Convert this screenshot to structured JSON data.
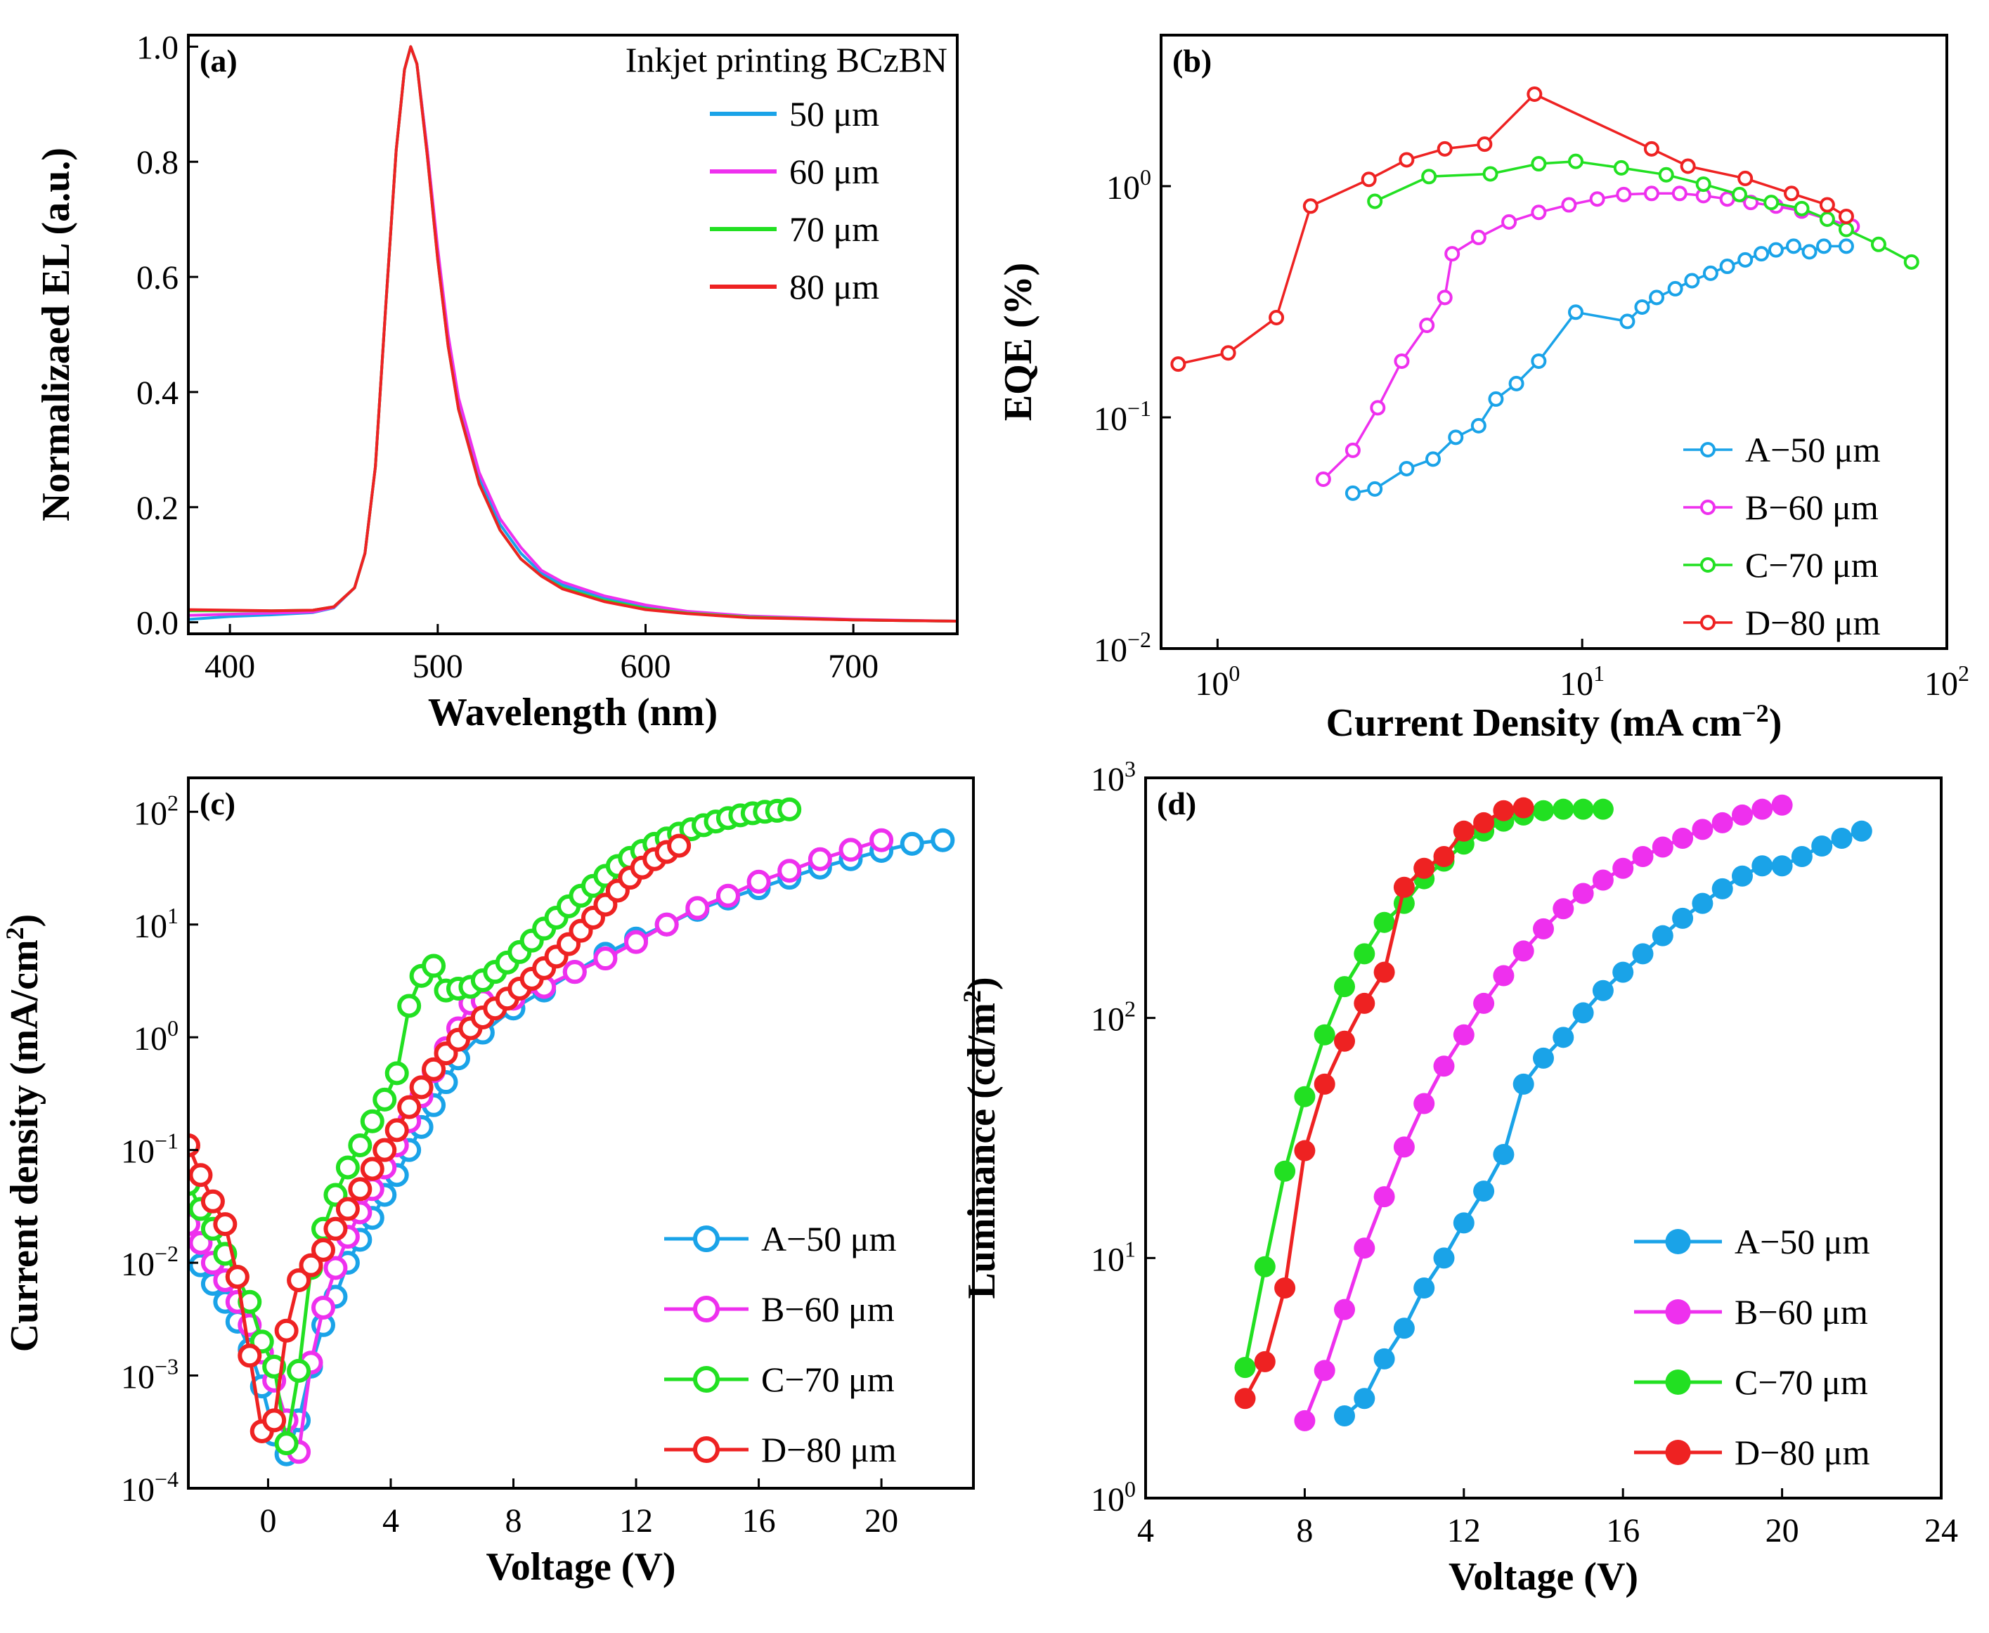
{
  "colors": {
    "A": "#1aa3e8",
    "B": "#ee30ee",
    "C": "#22e022",
    "D": "#ee2222"
  },
  "chart_data": [
    {
      "panel": "(a)",
      "type": "line",
      "xlabel": "Wavelength (nm)",
      "ylabel": "Normalizaed EL (a.u.)",
      "xlim": [
        380,
        750
      ],
      "ylim": [
        -0.02,
        1.02
      ],
      "xticks": [
        400,
        500,
        600,
        700
      ],
      "yticks": [
        0.0,
        0.2,
        0.4,
        0.6,
        0.8,
        1.0
      ],
      "legend_title": "Inkjet printing BCzBN",
      "legend_position": "top-right",
      "x": [
        380,
        400,
        420,
        440,
        450,
        460,
        465,
        470,
        475,
        480,
        484,
        487,
        490,
        495,
        500,
        505,
        510,
        520,
        530,
        540,
        550,
        560,
        580,
        600,
        620,
        650,
        700,
        750
      ],
      "series": [
        {
          "name": "50 μm",
          "color": "A",
          "values": [
            0.005,
            0.01,
            0.013,
            0.017,
            0.025,
            0.06,
            0.12,
            0.27,
            0.55,
            0.82,
            0.96,
            1.0,
            0.97,
            0.82,
            0.64,
            0.49,
            0.38,
            0.25,
            0.17,
            0.12,
            0.085,
            0.065,
            0.043,
            0.028,
            0.018,
            0.01,
            0.004,
            0.002
          ]
        },
        {
          "name": "60 μm",
          "color": "B",
          "values": [
            0.012,
            0.014,
            0.016,
            0.018,
            0.026,
            0.06,
            0.12,
            0.27,
            0.55,
            0.82,
            0.96,
            1.0,
            0.97,
            0.82,
            0.65,
            0.5,
            0.39,
            0.26,
            0.18,
            0.13,
            0.09,
            0.07,
            0.046,
            0.03,
            0.019,
            0.011,
            0.005,
            0.002
          ]
        },
        {
          "name": "70 μm",
          "color": "C",
          "values": [
            0.02,
            0.02,
            0.02,
            0.021,
            0.027,
            0.06,
            0.12,
            0.27,
            0.55,
            0.82,
            0.96,
            1.0,
            0.97,
            0.81,
            0.63,
            0.48,
            0.37,
            0.24,
            0.16,
            0.11,
            0.08,
            0.06,
            0.038,
            0.024,
            0.016,
            0.009,
            0.004,
            0.002
          ]
        },
        {
          "name": "80 μm",
          "color": "D",
          "values": [
            0.022,
            0.021,
            0.02,
            0.021,
            0.027,
            0.06,
            0.12,
            0.27,
            0.55,
            0.82,
            0.96,
            1.0,
            0.97,
            0.81,
            0.63,
            0.48,
            0.37,
            0.24,
            0.16,
            0.11,
            0.08,
            0.058,
            0.036,
            0.022,
            0.015,
            0.008,
            0.004,
            0.002
          ]
        }
      ]
    },
    {
      "panel": "(b)",
      "type": "line",
      "xscale": "log",
      "yscale": "log",
      "xlabel": "Current Density (mA cm",
      "xlabel_sup": "−2",
      "xlabel_close": ")",
      "ylabel": "EQE (%)",
      "xlim": [
        0.7,
        100
      ],
      "ylim": [
        0.01,
        4.5
      ],
      "xticks": [
        {
          "base": "10",
          "exp": "0",
          "v": 1
        },
        {
          "base": "10",
          "exp": "1",
          "v": 10
        },
        {
          "base": "10",
          "exp": "2",
          "v": 100
        }
      ],
      "yticks": [
        {
          "base": "10",
          "exp": "−2",
          "v": 0.01
        },
        {
          "base": "10",
          "exp": "−1",
          "v": 0.1
        },
        {
          "base": "10",
          "exp": "0",
          "v": 1
        }
      ],
      "legend_position": "bottom-right",
      "series": [
        {
          "name": "A−50 μm",
          "color": "A",
          "x": [
            2.35,
            2.7,
            3.3,
            3.9,
            4.5,
            5.2,
            5.8,
            6.6,
            7.6,
            9.6,
            13.3,
            14.6,
            16,
            18,
            20,
            22.5,
            25,
            28,
            31,
            34,
            38,
            42,
            46,
            53
          ],
          "y": [
            0.047,
            0.049,
            0.06,
            0.066,
            0.082,
            0.092,
            0.12,
            0.14,
            0.175,
            0.285,
            0.26,
            0.3,
            0.33,
            0.36,
            0.39,
            0.42,
            0.45,
            0.48,
            0.51,
            0.53,
            0.55,
            0.52,
            0.55,
            0.55
          ]
        },
        {
          "name": "B−60 μm",
          "color": "B",
          "x": [
            1.95,
            2.35,
            2.75,
            3.2,
            3.75,
            4.2,
            4.4,
            5.2,
            6.3,
            7.6,
            9.2,
            11,
            13,
            15.5,
            18.5,
            21.5,
            25,
            29,
            34,
            40,
            47,
            55
          ],
          "y": [
            0.054,
            0.072,
            0.11,
            0.175,
            0.25,
            0.33,
            0.51,
            0.6,
            0.7,
            0.77,
            0.83,
            0.88,
            0.92,
            0.93,
            0.93,
            0.91,
            0.88,
            0.85,
            0.82,
            0.78,
            0.72,
            0.67
          ]
        },
        {
          "name": "C−70 μm",
          "color": "C",
          "x": [
            2.7,
            3.8,
            5.6,
            7.6,
            9.6,
            12.8,
            17,
            21.5,
            27,
            33,
            40,
            47,
            53,
            65,
            80
          ],
          "y": [
            0.86,
            1.1,
            1.13,
            1.25,
            1.28,
            1.2,
            1.12,
            1.02,
            0.92,
            0.85,
            0.8,
            0.72,
            0.65,
            0.56,
            0.47
          ]
        },
        {
          "name": "D−80 μm",
          "color": "D",
          "x": [
            0.78,
            1.07,
            1.45,
            1.8,
            2.6,
            3.3,
            4.2,
            5.4,
            7.4,
            15.5,
            19.5,
            28,
            37.5,
            47,
            53
          ],
          "y": [
            0.17,
            0.19,
            0.27,
            0.82,
            1.07,
            1.3,
            1.45,
            1.52,
            2.5,
            1.45,
            1.22,
            1.08,
            0.93,
            0.83,
            0.74
          ]
        }
      ]
    },
    {
      "panel": "(c)",
      "type": "line",
      "yscale": "log",
      "xlabel": "Voltage (V)",
      "ylabel": "Current density (mA/cm",
      "ylabel_sup": "2",
      "ylabel_close": ")",
      "xlim": [
        -2.6,
        23
      ],
      "ylim": [
        0.0001,
        200
      ],
      "xticks": [
        0,
        4,
        8,
        12,
        16,
        20
      ],
      "yticks": [
        {
          "base": "10",
          "exp": "−4",
          "v": 0.0001
        },
        {
          "base": "10",
          "exp": "−3",
          "v": 0.001
        },
        {
          "base": "10",
          "exp": "−2",
          "v": 0.01
        },
        {
          "base": "10",
          "exp": "−1",
          "v": 0.1
        },
        {
          "base": "10",
          "exp": "0",
          "v": 1
        },
        {
          "base": "10",
          "exp": "1",
          "v": 10
        },
        {
          "base": "10",
          "exp": "2",
          "v": 100
        }
      ],
      "legend_position": "bottom-right",
      "series": [
        {
          "name": "A−50 μm",
          "color": "A",
          "x": [
            -2.6,
            -2.2,
            -1.8,
            -1.4,
            -1,
            -0.6,
            -0.2,
            0.2,
            0.6,
            1,
            1.4,
            1.8,
            2.2,
            2.6,
            3,
            3.4,
            3.8,
            4.2,
            4.6,
            5,
            5.4,
            5.8,
            6.2,
            7,
            8,
            9,
            10,
            11,
            12,
            13,
            14,
            15,
            16,
            17,
            18,
            19,
            20,
            21,
            22
          ],
          "y": [
            0.012,
            0.0095,
            0.0065,
            0.0045,
            0.003,
            0.0017,
            0.0008,
            0.0003,
            0.0002,
            0.0004,
            0.0012,
            0.0028,
            0.005,
            0.01,
            0.016,
            0.025,
            0.04,
            0.06,
            0.1,
            0.16,
            0.25,
            0.4,
            0.65,
            1.1,
            1.8,
            2.6,
            3.8,
            5.5,
            7.5,
            10,
            13.5,
            17,
            21,
            26,
            32,
            38,
            45,
            52,
            56
          ]
        },
        {
          "name": "B−60 μm",
          "color": "B",
          "x": [
            -2.6,
            -2.2,
            -1.8,
            -1.4,
            -1,
            -0.6,
            -0.2,
            0.2,
            0.6,
            1,
            1.4,
            1.8,
            2.2,
            2.6,
            3,
            3.4,
            3.8,
            4.2,
            4.6,
            5,
            5.4,
            5.8,
            6.2,
            6.6,
            7,
            8,
            9,
            10,
            11,
            12,
            13,
            14,
            15,
            16,
            17,
            18,
            19,
            20
          ],
          "y": [
            0.022,
            0.015,
            0.01,
            0.007,
            0.0045,
            0.0028,
            0.0016,
            0.0009,
            0.0004,
            0.00021,
            0.0013,
            0.004,
            0.009,
            0.017,
            0.028,
            0.045,
            0.07,
            0.11,
            0.18,
            0.3,
            0.5,
            0.8,
            1.2,
            2.0,
            2.1,
            2.2,
            2.8,
            3.8,
            5.0,
            7.0,
            10,
            14,
            18,
            24,
            30,
            38,
            46,
            56
          ]
        },
        {
          "name": "C−70 μm",
          "color": "C",
          "x": [
            -2.6,
            -2.2,
            -1.8,
            -1.4,
            -1,
            -0.6,
            -0.2,
            0.2,
            0.6,
            1,
            1.4,
            1.8,
            2.2,
            2.6,
            3,
            3.4,
            3.8,
            4.2,
            4.6,
            5,
            5.4,
            5.8,
            6.2,
            6.6,
            7,
            7.4,
            7.8,
            8.2,
            8.6,
            9,
            9.4,
            9.8,
            10.2,
            10.6,
            11,
            11.4,
            11.8,
            12.2,
            12.6,
            13,
            13.4,
            13.8,
            14.2,
            14.6,
            15,
            15.4,
            15.8,
            16.2,
            16.6,
            17
          ],
          "y": [
            0.05,
            0.03,
            0.02,
            0.012,
            0.0075,
            0.0045,
            0.002,
            0.0012,
            0.00025,
            0.0011,
            0.009,
            0.02,
            0.04,
            0.07,
            0.11,
            0.18,
            0.28,
            0.48,
            1.9,
            3.5,
            4.3,
            2.6,
            2.7,
            2.8,
            3.2,
            3.8,
            4.6,
            5.7,
            7.2,
            9.2,
            11.5,
            14.5,
            18,
            22,
            27,
            33,
            39,
            45,
            52,
            58,
            64,
            70,
            76,
            82,
            88,
            93,
            97,
            100,
            102,
            105
          ]
        },
        {
          "name": "D−80 μm",
          "color": "D",
          "x": [
            -2.6,
            -2.2,
            -1.8,
            -1.4,
            -1,
            -0.6,
            -0.2,
            0.2,
            0.6,
            1,
            1.4,
            1.8,
            2.2,
            2.6,
            3,
            3.4,
            3.8,
            4.2,
            4.6,
            5,
            5.4,
            5.8,
            6.2,
            6.6,
            7,
            7.4,
            7.8,
            8.2,
            8.6,
            9,
            9.4,
            9.8,
            10.2,
            10.6,
            11,
            11.4,
            11.8,
            12.2,
            12.6,
            13,
            13.4
          ],
          "y": [
            0.11,
            0.06,
            0.035,
            0.022,
            0.0075,
            0.0015,
            0.00032,
            0.0004,
            0.0025,
            0.007,
            0.0095,
            0.013,
            0.02,
            0.03,
            0.045,
            0.068,
            0.1,
            0.15,
            0.24,
            0.36,
            0.52,
            0.72,
            0.95,
            1.2,
            1.5,
            1.8,
            2.2,
            2.7,
            3.3,
            4.1,
            5.2,
            6.7,
            8.8,
            11.5,
            15,
            20,
            26,
            32,
            38,
            44,
            50
          ]
        }
      ]
    },
    {
      "panel": "(d)",
      "type": "line",
      "yscale": "log",
      "xlabel": "Voltage (V)",
      "ylabel": "Luminance (cd/m",
      "ylabel_sup": "2",
      "ylabel_close": ")",
      "xlim": [
        4,
        24
      ],
      "ylim": [
        1,
        1000
      ],
      "xticks": [
        4,
        8,
        12,
        16,
        20,
        24
      ],
      "yticks": [
        {
          "base": "10",
          "exp": "0",
          "v": 1
        },
        {
          "base": "10",
          "exp": "1",
          "v": 10
        },
        {
          "base": "10",
          "exp": "2",
          "v": 100
        },
        {
          "base": "10",
          "exp": "3",
          "v": 1000
        }
      ],
      "legend_position": "bottom-right",
      "series": [
        {
          "name": "A−50 μm",
          "color": "A",
          "x": [
            9,
            9.5,
            10,
            10.5,
            11,
            11.5,
            12,
            12.5,
            13,
            13.5,
            14,
            14.5,
            15,
            15.5,
            16,
            16.5,
            17,
            17.5,
            18,
            18.5,
            19,
            19.5,
            20,
            20.5,
            21,
            21.5,
            22
          ],
          "y": [
            2.2,
            2.6,
            3.8,
            5.1,
            7.5,
            10,
            14,
            19,
            27,
            53,
            68,
            83,
            105,
            130,
            155,
            185,
            220,
            260,
            300,
            345,
            390,
            430,
            430,
            470,
            520,
            560,
            600
          ]
        },
        {
          "name": "B−60 μm",
          "color": "B",
          "x": [
            8,
            8.5,
            9,
            9.5,
            10,
            10.5,
            11,
            11.5,
            12,
            12.5,
            13,
            13.5,
            14,
            14.5,
            15,
            15.5,
            16,
            16.5,
            17,
            17.5,
            18,
            18.5,
            19,
            19.5,
            20
          ],
          "y": [
            2.1,
            3.4,
            6.1,
            11,
            18,
            29,
            44,
            63,
            85,
            115,
            150,
            190,
            235,
            285,
            330,
            375,
            420,
            470,
            515,
            560,
            610,
            650,
            700,
            740,
            770
          ]
        },
        {
          "name": "C−70 μm",
          "color": "C",
          "x": [
            6.5,
            7,
            7.5,
            8,
            8.5,
            9,
            9.5,
            10,
            10.5,
            11,
            11.5,
            12,
            12.5,
            13,
            13.5,
            14,
            14.5,
            15,
            15.5
          ],
          "y": [
            3.5,
            9.2,
            23,
            47,
            85,
            135,
            185,
            250,
            300,
            380,
            450,
            530,
            600,
            660,
            700,
            730,
            740,
            740,
            740
          ]
        },
        {
          "name": "D−80 μm",
          "color": "D",
          "x": [
            6.5,
            7,
            7.5,
            8,
            8.5,
            9,
            9.5,
            10,
            10.5,
            11,
            11.5,
            12,
            12.5,
            13,
            13.5
          ],
          "y": [
            2.6,
            3.7,
            7.5,
            28,
            53,
            80,
            115,
            155,
            350,
            420,
            470,
            600,
            650,
            730,
            750
          ]
        }
      ]
    }
  ]
}
